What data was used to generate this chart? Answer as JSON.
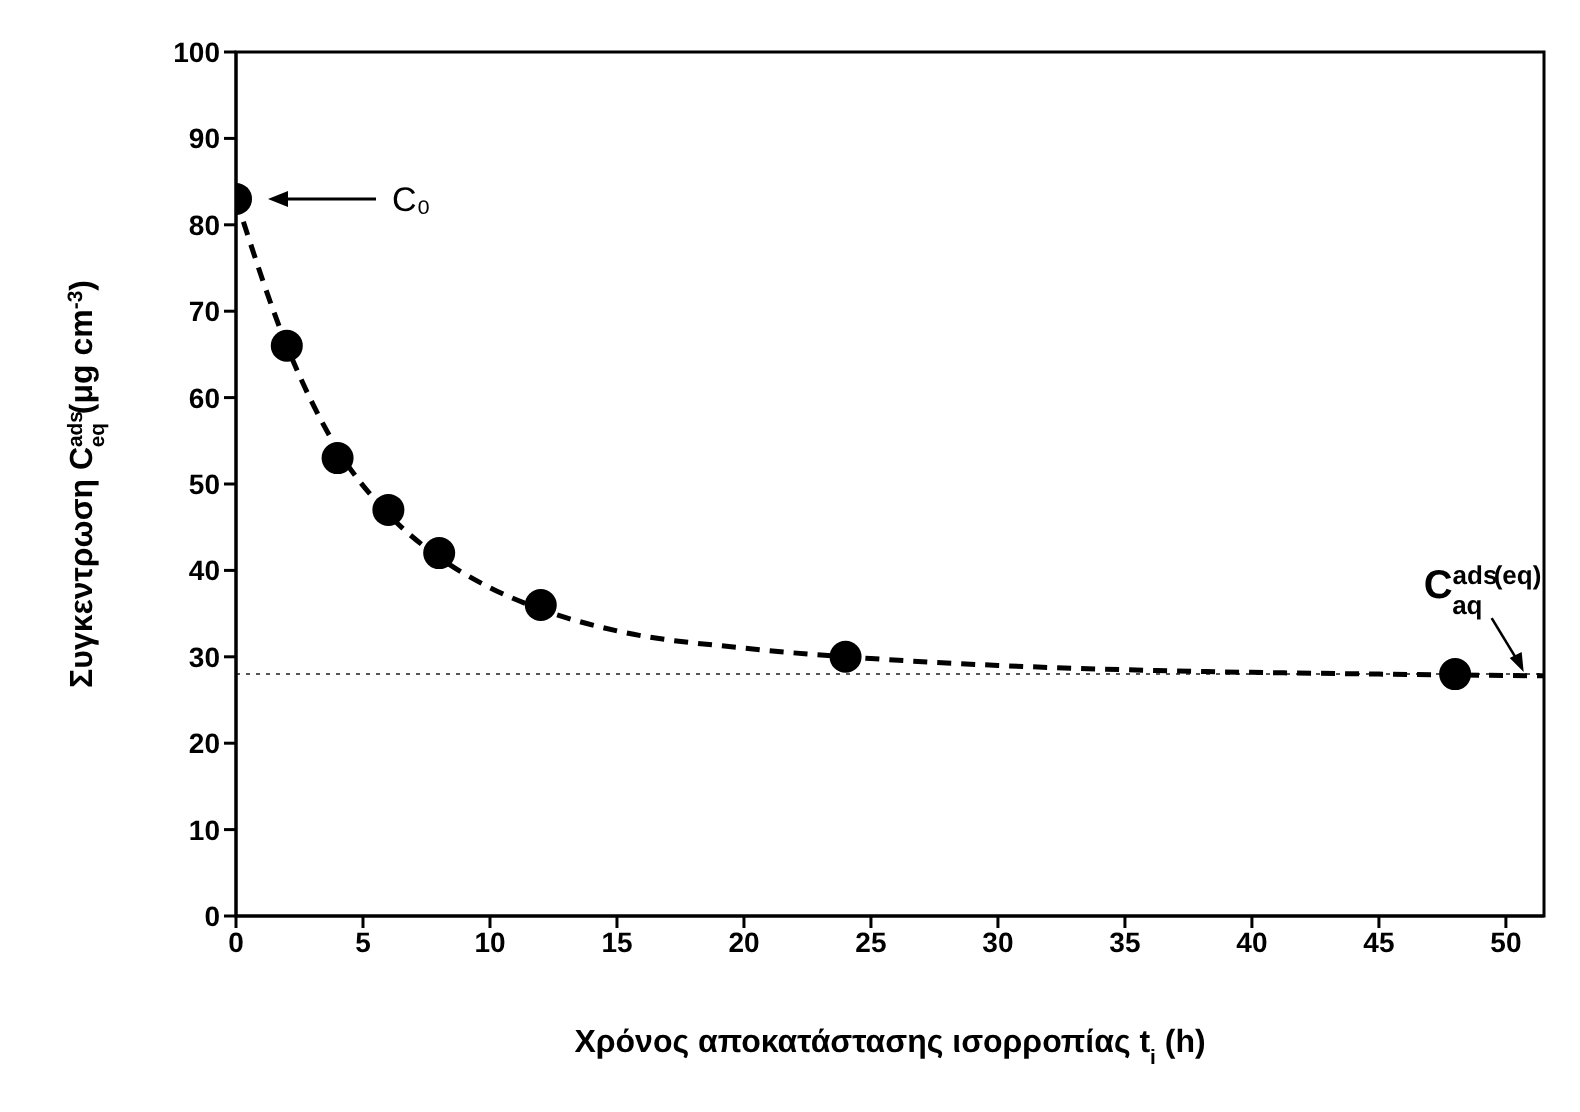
{
  "chart_data": {
    "type": "scatter",
    "xlabel": "Χρόνος αποκατάστασης ισορροπίας t$_{i}$ (h)",
    "ylabel": "Συγκεντρωση C$^{ads}$$_{eq}$ (μg cm$^{-3}$)",
    "xlim": [
      0,
      51.5
    ],
    "xticks": [
      0,
      5,
      10,
      15,
      20,
      25,
      30,
      35,
      40,
      45,
      50
    ],
    "ylim": [
      0,
      100
    ],
    "yticks": [
      0,
      10,
      20,
      30,
      40,
      50,
      60,
      70,
      80,
      90,
      100
    ],
    "marker": "circle",
    "series": [
      {
        "color": "#000000",
        "x": [
          0,
          2,
          4,
          6,
          8,
          12,
          24,
          48
        ],
        "values": [
          83,
          66,
          53,
          47,
          42,
          36,
          30,
          28
        ]
      },
      {
        "type": "line",
        "color": "#000000",
        "line_style": "dashed",
        "marker": "none",
        "x": [
          0,
          2,
          4,
          6,
          8,
          10,
          12,
          15,
          20,
          25,
          30,
          35,
          40,
          45,
          51.5
        ],
        "values": [
          83,
          66,
          54,
          46.5,
          41.5,
          38,
          35.5,
          33,
          31,
          29.8,
          29,
          28.5,
          28.2,
          28,
          27.8
        ]
      }
    ],
    "ref_lines": [
      {
        "axis": "y",
        "value": 28,
        "color": "#555555",
        "line_style": "dotted"
      }
    ],
    "annotations": [
      "C₀",
      "C$^{ads}$$_{aq}$ $^{(eq)}$"
    ]
  }
}
